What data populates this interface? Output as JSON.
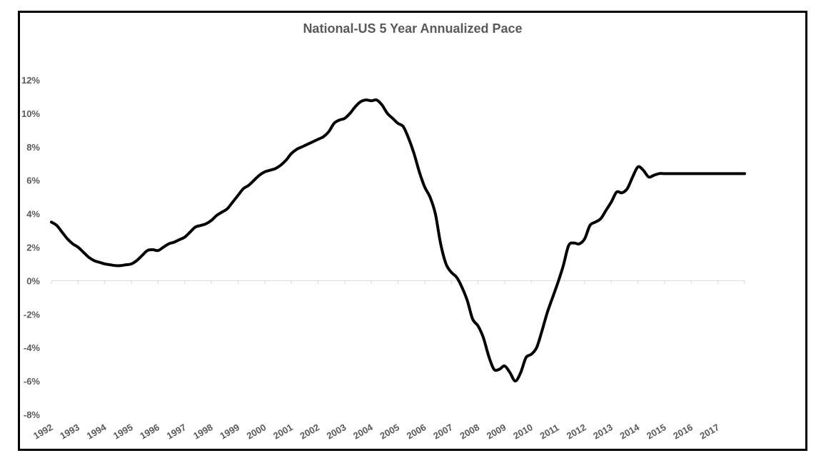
{
  "chart_data": {
    "type": "line",
    "title": "National-US 5 Year Annualized Pace",
    "xlabel": "",
    "ylabel": "",
    "ylim": [
      -8,
      12
    ],
    "xlim": [
      1992,
      2018
    ],
    "grid": false,
    "legend": "none",
    "y_ticks": [
      12,
      10,
      8,
      6,
      4,
      2,
      0,
      -2,
      -4,
      -6,
      -8
    ],
    "y_tick_labels": [
      "12%",
      "10%",
      "8%",
      "6%",
      "4%",
      "2%",
      "0%",
      "-2%",
      "-4%",
      "-6%",
      "-8%"
    ],
    "x_tick_labels": [
      "1992",
      "1993",
      "1994",
      "1995",
      "1996",
      "1997",
      "1998",
      "1999",
      "2000",
      "2001",
      "2002",
      "2003",
      "2004",
      "2005",
      "2006",
      "2007",
      "2008",
      "2009",
      "2010",
      "2011",
      "2012",
      "2013",
      "2014",
      "2015",
      "2016",
      "2017"
    ],
    "line_color": "#000000",
    "axis_color": "#d9d9d9",
    "series": [
      {
        "name": "National-US 5 Year Annualized Pace",
        "x": [
          1992.0,
          1992.2,
          1992.4,
          1992.6,
          1992.8,
          1993.0,
          1993.2,
          1993.4,
          1993.6,
          1993.8,
          1994.0,
          1994.2,
          1994.4,
          1994.6,
          1994.8,
          1995.0,
          1995.2,
          1995.4,
          1995.6,
          1995.8,
          1996.0,
          1996.2,
          1996.4,
          1996.6,
          1996.8,
          1997.0,
          1997.2,
          1997.4,
          1997.6,
          1997.8,
          1998.0,
          1998.2,
          1998.4,
          1998.6,
          1998.8,
          1999.0,
          1999.2,
          1999.4,
          1999.6,
          1999.8,
          2000.0,
          2000.2,
          2000.4,
          2000.6,
          2000.8,
          2001.0,
          2001.2,
          2001.4,
          2001.6,
          2001.8,
          2002.0,
          2002.2,
          2002.4,
          2002.6,
          2002.8,
          2003.0,
          2003.2,
          2003.4,
          2003.6,
          2003.8,
          2004.0,
          2004.2,
          2004.4,
          2004.6,
          2004.8,
          2005.0,
          2005.2,
          2005.4,
          2005.6,
          2005.8,
          2006.0,
          2006.2,
          2006.4,
          2006.6,
          2006.8,
          2007.0,
          2007.2,
          2007.4,
          2007.6,
          2007.8,
          2008.0,
          2008.2,
          2008.4,
          2008.6,
          2008.8,
          2009.0,
          2009.2,
          2009.4,
          2009.6,
          2009.8,
          2010.0,
          2010.2,
          2010.4,
          2010.6,
          2010.8,
          2011.0,
          2011.2,
          2011.4,
          2011.6,
          2011.8,
          2012.0,
          2012.2,
          2012.4,
          2012.6,
          2012.8,
          2013.0,
          2013.2,
          2013.4,
          2013.6,
          2013.8,
          2014.0,
          2014.2,
          2014.4,
          2014.6,
          2014.8,
          2015.0,
          2015.2,
          2015.4,
          2015.6,
          2015.8,
          2016.0,
          2016.2,
          2016.4,
          2016.6,
          2016.8,
          2017.0,
          2017.2,
          2017.4,
          2017.6,
          2017.8,
          2018.0
        ],
        "values": [
          3.5,
          3.3,
          2.9,
          2.5,
          2.2,
          2.0,
          1.7,
          1.4,
          1.2,
          1.1,
          1.0,
          0.95,
          0.9,
          0.9,
          0.95,
          1.0,
          1.2,
          1.5,
          1.8,
          1.85,
          1.8,
          2.0,
          2.2,
          2.3,
          2.45,
          2.6,
          2.9,
          3.2,
          3.3,
          3.4,
          3.6,
          3.9,
          4.1,
          4.3,
          4.7,
          5.1,
          5.5,
          5.7,
          6.0,
          6.3,
          6.5,
          6.6,
          6.7,
          6.9,
          7.2,
          7.6,
          7.85,
          8.0,
          8.15,
          8.3,
          8.45,
          8.6,
          8.9,
          9.4,
          9.6,
          9.7,
          10.0,
          10.4,
          10.7,
          10.8,
          10.75,
          10.8,
          10.5,
          10.0,
          9.7,
          9.4,
          9.2,
          8.5,
          7.6,
          6.5,
          5.6,
          5.0,
          4.0,
          2.2,
          1.0,
          0.5,
          0.2,
          -0.4,
          -1.2,
          -2.3,
          -2.7,
          -3.4,
          -4.5,
          -5.3,
          -5.3,
          -5.1,
          -5.5,
          -6.0,
          -5.5,
          -4.6,
          -4.4,
          -4.0,
          -3.0,
          -1.9,
          -1.0,
          -0.1,
          0.9,
          2.1,
          2.25,
          2.2,
          2.5,
          3.3,
          3.5,
          3.7,
          4.2,
          4.7,
          5.3,
          5.25,
          5.5,
          6.2,
          6.8,
          6.6,
          6.2,
          6.3,
          6.4,
          6.4,
          6.4,
          6.4,
          6.4,
          6.4,
          6.4,
          6.4,
          6.4,
          6.4,
          6.4,
          6.4,
          6.4,
          6.4,
          6.4,
          6.4,
          6.4
        ]
      }
    ]
  }
}
